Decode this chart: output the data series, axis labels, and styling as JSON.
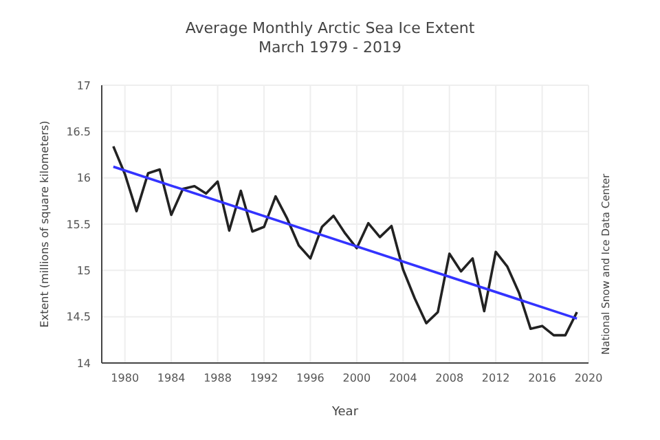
{
  "chart_data": {
    "type": "line",
    "title": "Average Monthly Arctic Sea Ice Extent",
    "subtitle": "March 1979 - 2019",
    "xlabel": "Year",
    "ylabel": "Extent (millions of square kilometers)",
    "annotations": [
      "National Snow and Ice Data Center"
    ],
    "series": [
      {
        "color": "#222222",
        "x": [
          1979,
          1980,
          1981,
          1982,
          1983,
          1984,
          1985,
          1986,
          1987,
          1988,
          1989,
          1990,
          1991,
          1992,
          1993,
          1994,
          1995,
          1996,
          1997,
          1998,
          1999,
          2000,
          2001,
          2002,
          2003,
          2004,
          2005,
          2006,
          2007,
          2008,
          2009,
          2010,
          2011,
          2012,
          2013,
          2014,
          2015,
          2016,
          2017,
          2018,
          2019
        ],
        "values": [
          16.34,
          16.04,
          15.64,
          16.05,
          16.09,
          15.6,
          15.88,
          15.91,
          15.83,
          15.96,
          15.43,
          15.86,
          15.42,
          15.47,
          15.8,
          15.56,
          15.27,
          15.13,
          15.47,
          15.59,
          15.4,
          15.24,
          15.51,
          15.36,
          15.48,
          15.01,
          14.7,
          14.43,
          14.55,
          15.18,
          14.99,
          15.13,
          14.56,
          15.2,
          15.04,
          14.76,
          14.37,
          14.4,
          14.3,
          14.3,
          14.55
        ]
      },
      {
        "type": "line",
        "color": "#3333ff",
        "x": [
          1979,
          2019
        ],
        "values": [
          16.12,
          14.48
        ]
      }
    ],
    "xlim": [
      1978,
      2020
    ],
    "xticks": [
      1980,
      1984,
      1988,
      1992,
      1996,
      2000,
      2004,
      2008,
      2012,
      2016,
      2020
    ],
    "ylim": [
      14,
      17
    ],
    "yticks": [
      14,
      14.5,
      15,
      15.5,
      16,
      16.5,
      17
    ],
    "grid": true,
    "marker": "none",
    "line_style": "solid"
  }
}
